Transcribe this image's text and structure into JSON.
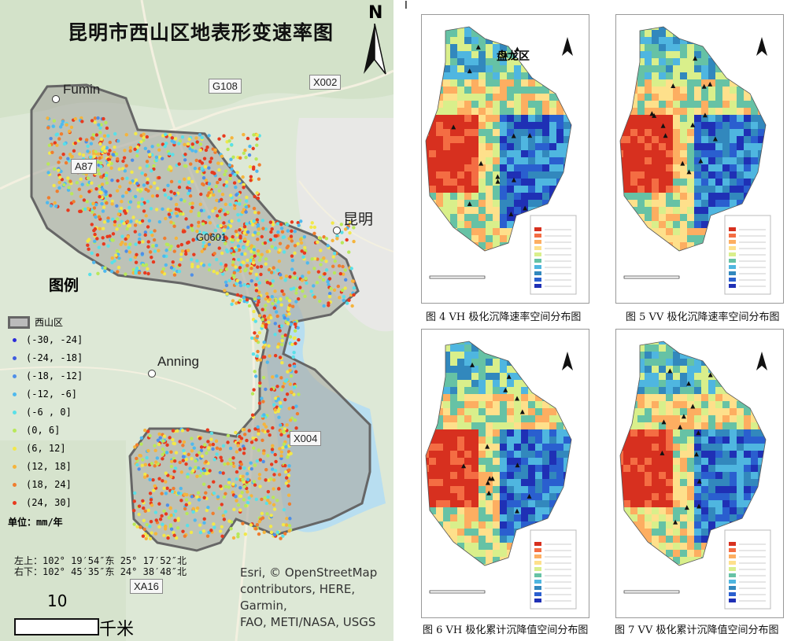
{
  "left_map": {
    "title": "昆明市西山区地表形变速率图",
    "north_label": "N",
    "roads": [
      "G108",
      "X002",
      "A87",
      "G0601",
      "X004",
      "XA16"
    ],
    "places": [
      "Fumin",
      "昆明",
      "Anning"
    ],
    "legend": {
      "title": "图例",
      "district": "西山区",
      "classes": [
        {
          "label": "(-30, -24]",
          "color": "#2b2bd9"
        },
        {
          "label": "(-24, -18]",
          "color": "#3f5be0"
        },
        {
          "label": "(-18, -12]",
          "color": "#4f8fe8"
        },
        {
          "label": "(-12, -6]",
          "color": "#4fb9ee"
        },
        {
          "label": "(-6 , 0]",
          "color": "#59e0e8"
        },
        {
          "label": "(0, 6]",
          "color": "#b9e85a"
        },
        {
          "label": "(6, 12]",
          "color": "#f2e84a"
        },
        {
          "label": "(12, 18]",
          "color": "#f5b43c"
        },
        {
          "label": "(18, 24]",
          "color": "#f07d2e"
        },
        {
          "label": "(24, 30]",
          "color": "#e83a1e"
        }
      ],
      "unit": "单位：mm/年"
    },
    "corners": {
      "top_left": "左上：102° 19′54″东 25° 17′52″北",
      "bottom_right": "右下：102° 45′35″东 24° 38′48″北"
    },
    "attribution": [
      "Esri, © OpenStreetMap",
      "contributors, HERE, Garmin,",
      "FAO, METI/NASA, USGS"
    ],
    "scale": {
      "value": "10",
      "unit": "千米"
    }
  },
  "panels": [
    {
      "id": "fig4",
      "caption": "图 4 VH 极化沉降速率空间分布图",
      "district_label": "盘龙区"
    },
    {
      "id": "fig5",
      "caption": "图 5 VV 极化沉降速率空间分布图"
    },
    {
      "id": "fig6",
      "caption": "图 6 VH 极化累计沉降值空间分布图"
    },
    {
      "id": "fig7",
      "caption": "图 7 VV 极化累计沉降值空间分布图"
    }
  ],
  "page_marker": "I"
}
